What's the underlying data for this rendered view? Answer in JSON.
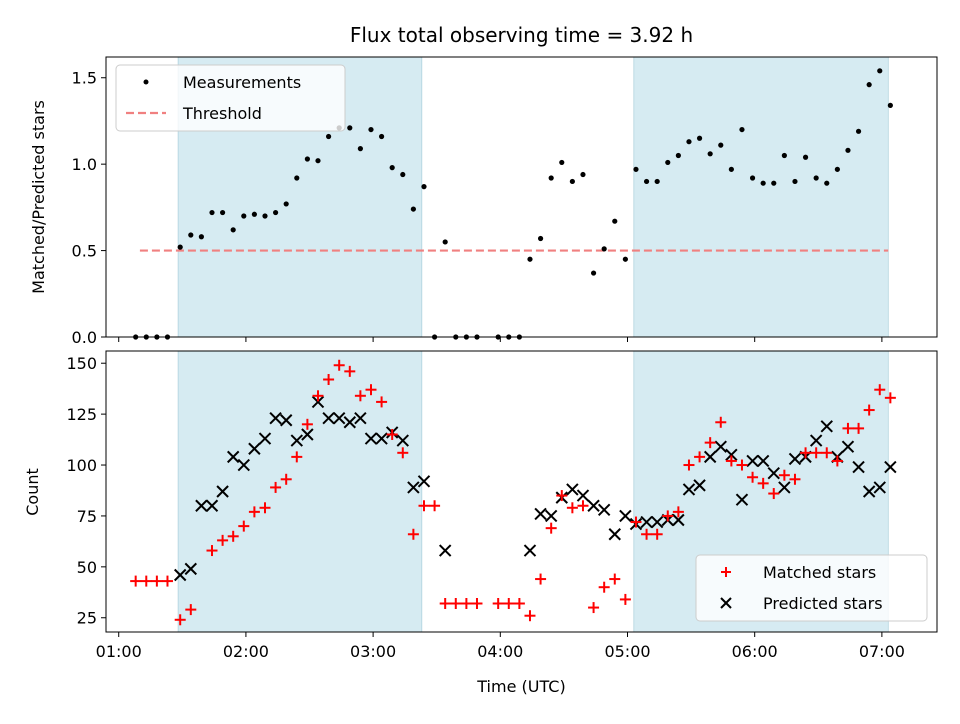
{
  "chart_data": [
    {
      "type": "scatter",
      "title": "Flux total observing time = 3.92 h",
      "xlabel": "",
      "ylabel": "Matched/Predicted stars",
      "ylim": [
        0,
        1.62
      ],
      "yticks": [
        0.0,
        0.5,
        1.0,
        1.5
      ],
      "ytick_labels": [
        "0.0",
        "0.5",
        "1.0",
        "1.5"
      ],
      "xticks": [
        "01:00",
        "02:00",
        "03:00",
        "04:00",
        "05:00",
        "06:00",
        "07:00"
      ],
      "xlim": [
        "00:54",
        "07:26"
      ],
      "shaded_spans": [
        [
          "01:28",
          "03:23"
        ],
        [
          "05:03",
          "07:03"
        ]
      ],
      "threshold": {
        "value": 0.5,
        "from": "01:10",
        "to": "07:03"
      },
      "legend_position": "upper-left",
      "legend": {
        "measurements": "Measurements",
        "threshold": "Threshold"
      },
      "colors": {
        "points": "#000000",
        "threshold": "#f08080",
        "shade": "#add8e6"
      },
      "series": [
        {
          "name": "Measurements",
          "points": [
            [
              "01:08",
              0.0
            ],
            [
              "01:13",
              0.0
            ],
            [
              "01:18",
              0.0
            ],
            [
              "01:23",
              0.0
            ],
            [
              "01:29",
              0.52
            ],
            [
              "01:34",
              0.59
            ],
            [
              "01:39",
              0.58
            ],
            [
              "01:44",
              0.72
            ],
            [
              "01:49",
              0.72
            ],
            [
              "01:54",
              0.62
            ],
            [
              "01:59",
              0.7
            ],
            [
              "02:04",
              0.71
            ],
            [
              "02:09",
              0.7
            ],
            [
              "02:14",
              0.72
            ],
            [
              "02:19",
              0.77
            ],
            [
              "02:24",
              0.92
            ],
            [
              "02:29",
              1.03
            ],
            [
              "02:34",
              1.02
            ],
            [
              "02:39",
              1.16
            ],
            [
              "02:44",
              1.21
            ],
            [
              "02:49",
              1.21
            ],
            [
              "02:54",
              1.09
            ],
            [
              "02:59",
              1.2
            ],
            [
              "03:04",
              1.16
            ],
            [
              "03:09",
              0.98
            ],
            [
              "03:14",
              0.94
            ],
            [
              "03:19",
              0.74
            ],
            [
              "03:24",
              0.87
            ],
            [
              "03:29",
              0.0
            ],
            [
              "03:34",
              0.55
            ],
            [
              "03:39",
              0.0
            ],
            [
              "03:44",
              0.0
            ],
            [
              "03:49",
              0.0
            ],
            [
              "03:59",
              0.0
            ],
            [
              "04:04",
              0.0
            ],
            [
              "04:09",
              0.0
            ],
            [
              "04:14",
              0.45
            ],
            [
              "04:19",
              0.57
            ],
            [
              "04:24",
              0.92
            ],
            [
              "04:29",
              1.01
            ],
            [
              "04:34",
              0.9
            ],
            [
              "04:39",
              0.94
            ],
            [
              "04:44",
              0.37
            ],
            [
              "04:49",
              0.51
            ],
            [
              "04:54",
              0.67
            ],
            [
              "04:59",
              0.45
            ],
            [
              "05:04",
              0.97
            ],
            [
              "05:09",
              0.9
            ],
            [
              "05:14",
              0.9
            ],
            [
              "05:19",
              1.01
            ],
            [
              "05:24",
              1.05
            ],
            [
              "05:29",
              1.13
            ],
            [
              "05:34",
              1.15
            ],
            [
              "05:39",
              1.06
            ],
            [
              "05:44",
              1.11
            ],
            [
              "05:49",
              0.97
            ],
            [
              "05:54",
              1.2
            ],
            [
              "05:59",
              0.92
            ],
            [
              "06:04",
              0.89
            ],
            [
              "06:09",
              0.89
            ],
            [
              "06:14",
              1.05
            ],
            [
              "06:19",
              0.9
            ],
            [
              "06:24",
              1.04
            ],
            [
              "06:29",
              0.92
            ],
            [
              "06:34",
              0.89
            ],
            [
              "06:39",
              0.97
            ],
            [
              "06:44",
              1.08
            ],
            [
              "06:49",
              1.19
            ],
            [
              "06:54",
              1.46
            ],
            [
              "06:59",
              1.54
            ],
            [
              "07:04",
              1.34
            ]
          ]
        }
      ]
    },
    {
      "type": "scatter",
      "title": "",
      "xlabel": "Time (UTC)",
      "ylabel": "Count",
      "ylim": [
        18,
        156
      ],
      "yticks": [
        25,
        50,
        75,
        100,
        125,
        150
      ],
      "ytick_labels": [
        "25",
        "50",
        "75",
        "100",
        "125",
        "150"
      ],
      "xticks": [
        "01:00",
        "02:00",
        "03:00",
        "04:00",
        "05:00",
        "06:00",
        "07:00"
      ],
      "xlim": [
        "00:54",
        "07:26"
      ],
      "shaded_spans": [
        [
          "01:28",
          "03:23"
        ],
        [
          "05:03",
          "07:03"
        ]
      ],
      "legend_position": "lower-right",
      "legend": {
        "matched": "Matched stars",
        "predicted": "Predicted stars"
      },
      "colors": {
        "matched": "#ff0000",
        "predicted": "#000000",
        "shade": "#add8e6"
      },
      "series": [
        {
          "name": "Matched stars",
          "points": [
            [
              "01:08",
              43
            ],
            [
              "01:13",
              43
            ],
            [
              "01:18",
              43
            ],
            [
              "01:23",
              43
            ],
            [
              "01:29",
              24
            ],
            [
              "01:34",
              29
            ],
            [
              "01:44",
              58
            ],
            [
              "01:49",
              63
            ],
            [
              "01:54",
              65
            ],
            [
              "01:59",
              70
            ],
            [
              "02:04",
              77
            ],
            [
              "02:09",
              79
            ],
            [
              "02:14",
              89
            ],
            [
              "02:19",
              93
            ],
            [
              "02:24",
              104
            ],
            [
              "02:29",
              120
            ],
            [
              "02:34",
              134
            ],
            [
              "02:39",
              142
            ],
            [
              "02:44",
              149
            ],
            [
              "02:49",
              146
            ],
            [
              "02:54",
              134
            ],
            [
              "02:59",
              137
            ],
            [
              "03:04",
              131
            ],
            [
              "03:09",
              115
            ],
            [
              "03:14",
              106
            ],
            [
              "03:19",
              66
            ],
            [
              "03:24",
              80
            ],
            [
              "03:29",
              80
            ],
            [
              "03:34",
              32
            ],
            [
              "03:39",
              32
            ],
            [
              "03:44",
              32
            ],
            [
              "03:49",
              32
            ],
            [
              "03:59",
              32
            ],
            [
              "04:04",
              32
            ],
            [
              "04:09",
              32
            ],
            [
              "04:14",
              26
            ],
            [
              "04:19",
              44
            ],
            [
              "04:24",
              69
            ],
            [
              "04:29",
              85
            ],
            [
              "04:34",
              79
            ],
            [
              "04:39",
              80
            ],
            [
              "04:44",
              30
            ],
            [
              "04:49",
              40
            ],
            [
              "04:54",
              44
            ],
            [
              "04:59",
              34
            ],
            [
              "05:04",
              72
            ],
            [
              "05:09",
              66
            ],
            [
              "05:14",
              66
            ],
            [
              "05:19",
              75
            ],
            [
              "05:24",
              77
            ],
            [
              "05:29",
              100
            ],
            [
              "05:34",
              104
            ],
            [
              "05:39",
              111
            ],
            [
              "05:44",
              121
            ],
            [
              "05:49",
              102
            ],
            [
              "05:54",
              100
            ],
            [
              "05:59",
              94
            ],
            [
              "06:04",
              91
            ],
            [
              "06:09",
              86
            ],
            [
              "06:14",
              95
            ],
            [
              "06:19",
              93
            ],
            [
              "06:24",
              106
            ],
            [
              "06:29",
              106
            ],
            [
              "06:34",
              106
            ],
            [
              "06:39",
              102
            ],
            [
              "06:44",
              118
            ],
            [
              "06:49",
              118
            ],
            [
              "06:54",
              127
            ],
            [
              "06:59",
              137
            ],
            [
              "07:04",
              133
            ]
          ]
        },
        {
          "name": "Predicted stars",
          "points": [
            [
              "01:29",
              46
            ],
            [
              "01:34",
              49
            ],
            [
              "01:39",
              80
            ],
            [
              "01:44",
              80
            ],
            [
              "01:49",
              87
            ],
            [
              "01:54",
              104
            ],
            [
              "01:59",
              100
            ],
            [
              "02:04",
              108
            ],
            [
              "02:09",
              113
            ],
            [
              "02:14",
              123
            ],
            [
              "02:19",
              122
            ],
            [
              "02:24",
              112
            ],
            [
              "02:29",
              115
            ],
            [
              "02:34",
              131
            ],
            [
              "02:39",
              123
            ],
            [
              "02:44",
              123
            ],
            [
              "02:49",
              121
            ],
            [
              "02:54",
              123
            ],
            [
              "02:59",
              113
            ],
            [
              "03:04",
              113
            ],
            [
              "03:09",
              116
            ],
            [
              "03:14",
              112
            ],
            [
              "03:19",
              89
            ],
            [
              "03:24",
              92
            ],
            [
              "03:34",
              58
            ],
            [
              "04:14",
              58
            ],
            [
              "04:19",
              76
            ],
            [
              "04:24",
              75
            ],
            [
              "04:29",
              84
            ],
            [
              "04:34",
              88
            ],
            [
              "04:39",
              85
            ],
            [
              "04:44",
              80
            ],
            [
              "04:49",
              78
            ],
            [
              "04:54",
              66
            ],
            [
              "04:59",
              75
            ],
            [
              "05:04",
              71
            ],
            [
              "05:09",
              72
            ],
            [
              "05:14",
              72
            ],
            [
              "05:19",
              73
            ],
            [
              "05:24",
              73
            ],
            [
              "05:29",
              88
            ],
            [
              "05:34",
              90
            ],
            [
              "05:39",
              104
            ],
            [
              "05:44",
              109
            ],
            [
              "05:49",
              105
            ],
            [
              "05:54",
              83
            ],
            [
              "05:59",
              102
            ],
            [
              "06:04",
              102
            ],
            [
              "06:09",
              96
            ],
            [
              "06:14",
              89
            ],
            [
              "06:19",
              103
            ],
            [
              "06:24",
              104
            ],
            [
              "06:29",
              112
            ],
            [
              "06:34",
              119
            ],
            [
              "06:39",
              104
            ],
            [
              "06:44",
              109
            ],
            [
              "06:49",
              99
            ],
            [
              "06:54",
              87
            ],
            [
              "06:59",
              89
            ],
            [
              "07:04",
              99
            ]
          ]
        }
      ]
    }
  ]
}
